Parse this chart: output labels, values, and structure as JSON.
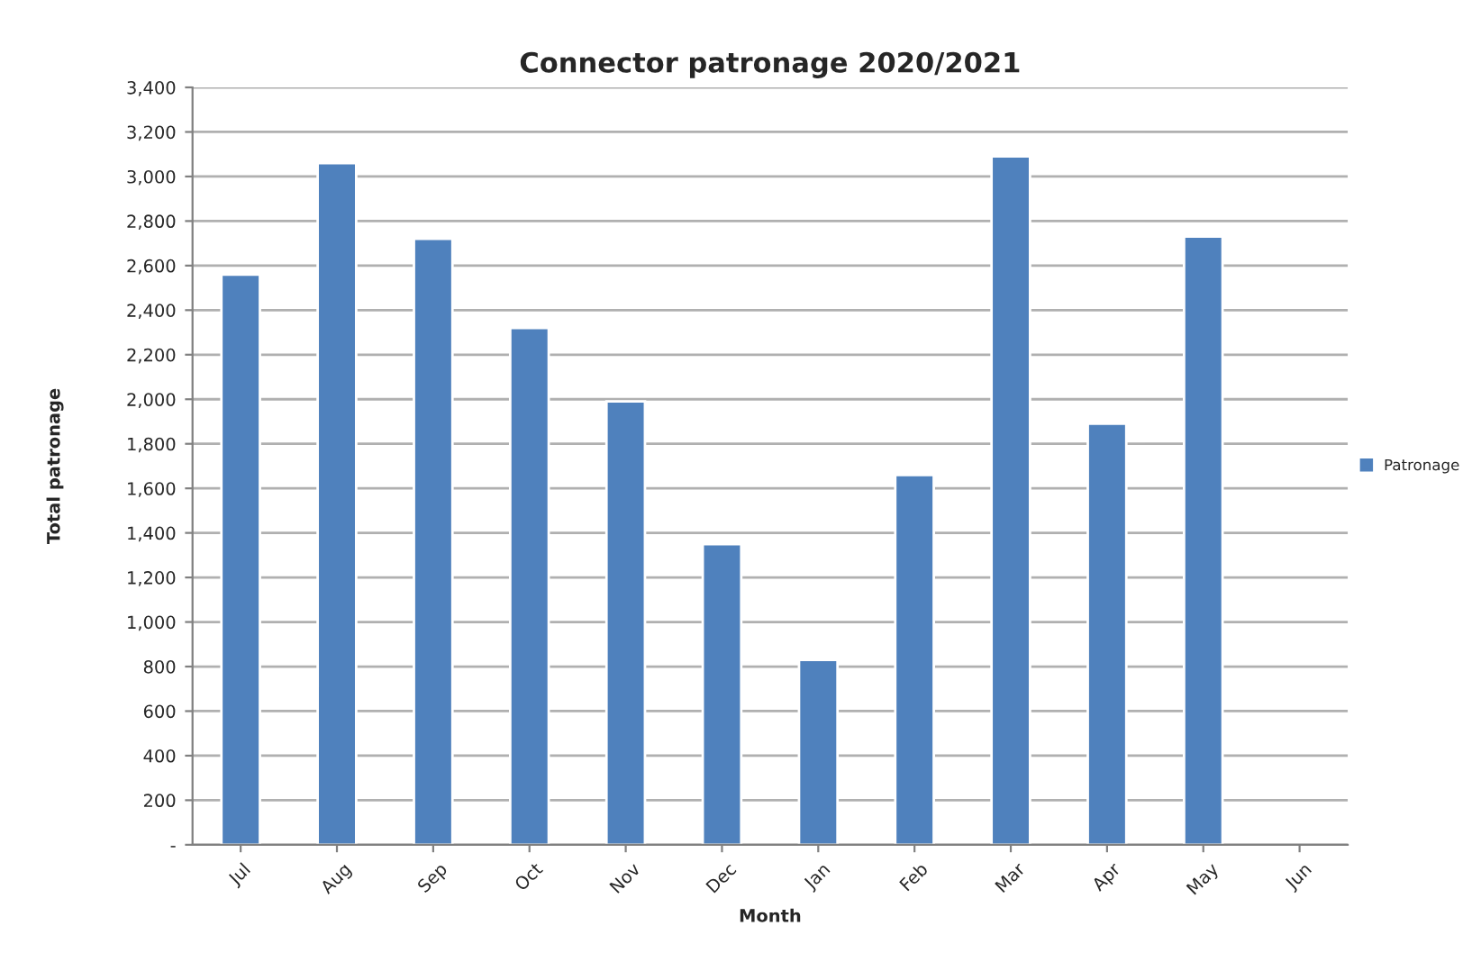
{
  "chart_data": {
    "type": "bar",
    "title": "Connector patronage 2020/2021",
    "xlabel": "Month",
    "ylabel": "Total patronage",
    "categories": [
      "Jul",
      "Aug",
      "Sep",
      "Oct",
      "Nov",
      "Dec",
      "Jan",
      "Feb",
      "Mar",
      "Apr",
      "May",
      "Jun"
    ],
    "series": [
      {
        "name": "Patronage",
        "color": "#4f81bd",
        "values": [
          2560,
          3060,
          2720,
          2320,
          1990,
          1350,
          830,
          1660,
          3090,
          1890,
          2730,
          null
        ]
      }
    ],
    "ylim": [
      0,
      3400
    ],
    "yticks": [
      {
        "value": 0,
        "label": "-"
      },
      200,
      400,
      600,
      800,
      {
        "value": 1000,
        "label": "1,000"
      },
      {
        "value": 1200,
        "label": "1,200"
      },
      {
        "value": 1400,
        "label": "1,400"
      },
      {
        "value": 1600,
        "label": "1,600"
      },
      {
        "value": 1800,
        "label": "1,800"
      },
      {
        "value": 2000,
        "label": "2,000"
      },
      {
        "value": 2200,
        "label": "2,200"
      },
      {
        "value": 2400,
        "label": "2,400"
      },
      {
        "value": 2600,
        "label": "2,600"
      },
      {
        "value": 2800,
        "label": "2,800"
      },
      {
        "value": 3000,
        "label": "3,000"
      },
      {
        "value": 3200,
        "label": "3,200"
      },
      {
        "value": 3400,
        "label": "3,400"
      }
    ],
    "grid": "y",
    "legend": "right"
  }
}
